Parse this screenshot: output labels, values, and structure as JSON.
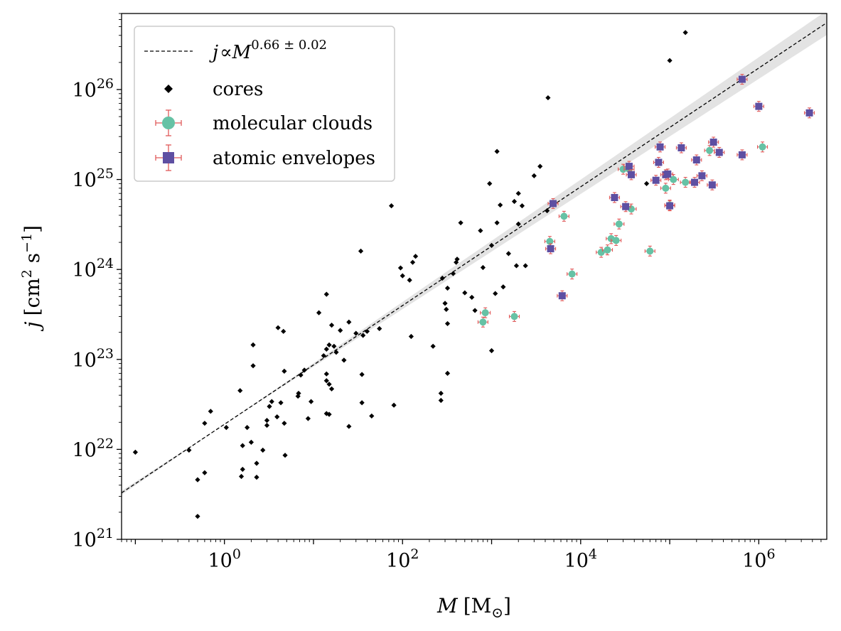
{
  "chart_data": {
    "type": "scatter",
    "xlabel": {
      "symbol": "M",
      "unit": "[M",
      "unit_sub": "⊙",
      "unit_close": "]"
    },
    "ylabel": {
      "symbol": "j",
      "unit": "[cm",
      "unit_sup1": "2",
      "unit_mid": " s",
      "unit_sup2": "−1",
      "unit_close": "]"
    },
    "x_scale": "log",
    "y_scale": "log",
    "xlim": [
      0.07,
      5800000
    ],
    "ylim": [
      1e+21,
      7e+26
    ],
    "x_ticks": [
      {
        "base": "10",
        "exp": "0",
        "value": 1
      },
      {
        "base": "10",
        "exp": "2",
        "value": 100
      },
      {
        "base": "10",
        "exp": "4",
        "value": 10000
      },
      {
        "base": "10",
        "exp": "6",
        "value": 1000000
      }
    ],
    "y_ticks": [
      {
        "base": "10",
        "exp": "21",
        "value": 1e+21
      },
      {
        "base": "10",
        "exp": "22",
        "value": 1e+22
      },
      {
        "base": "10",
        "exp": "23",
        "value": 1e+23
      },
      {
        "base": "10",
        "exp": "24",
        "value": 1e+24
      },
      {
        "base": "10",
        "exp": "25",
        "value": 1e+25
      },
      {
        "base": "10",
        "exp": "26",
        "value": 1e+26
      }
    ],
    "grid": false,
    "legend_position": "top-left",
    "fit": {
      "label_j": "j",
      "label_prop": "∝",
      "label_M": "M",
      "label_exp": "0.66 ± 0.02",
      "slope": 0.66,
      "slope_err": 0.02,
      "through": [
        1,
        1.9e+22
      ],
      "band_color": "#e3e3e3"
    },
    "series": [
      {
        "name": "cores",
        "marker": "diamond",
        "color": "#000000",
        "points": [
          [
            0.1,
            9.3e+21
          ],
          [
            0.4,
            9.8e+21
          ],
          [
            0.5,
            4.6e+21
          ],
          [
            0.6,
            5.5e+21
          ],
          [
            0.6,
            1.95e+22
          ],
          [
            0.7,
            2.65e+22
          ],
          [
            0.5,
            1.8e+21
          ],
          [
            1.05,
            1.75e+22
          ],
          [
            1.5,
            4.5e+22
          ],
          [
            1.55,
            5e+21
          ],
          [
            1.6,
            6e+21
          ],
          [
            1.6,
            1.1e+22
          ],
          [
            1.8,
            1.75e+22
          ],
          [
            2.0,
            1.2e+22
          ],
          [
            2.1,
            1.45e+23
          ],
          [
            2.1,
            8.5e+22
          ],
          [
            2.3,
            7e+21
          ],
          [
            2.3,
            4.9e+21
          ],
          [
            2.7,
            9.8e+21
          ],
          [
            3.0,
            1.85e+22
          ],
          [
            3.0,
            2.1e+22
          ],
          [
            3.2,
            3e+22
          ],
          [
            3.4,
            3.4e+22
          ],
          [
            3.9,
            2.3e+22
          ],
          [
            4.0,
            2.25e+23
          ],
          [
            4.3,
            3.3e+22
          ],
          [
            4.6,
            2.05e+23
          ],
          [
            4.7,
            7.4e+22
          ],
          [
            4.7,
            1.95e+22
          ],
          [
            4.8,
            8.6e+21
          ],
          [
            6.7,
            3.9e+22
          ],
          [
            6.8,
            4.2e+22
          ],
          [
            7.2,
            6.7e+22
          ],
          [
            7.9,
            7.6e+22
          ],
          [
            8.7,
            2.2e+22
          ],
          [
            9.4,
            3.4e+22
          ],
          [
            11.5,
            3.3e+23
          ],
          [
            13,
            1.1e+23
          ],
          [
            14,
            1.3e+23
          ],
          [
            14,
            5.3e+23
          ],
          [
            14,
            6.9e+22
          ],
          [
            14,
            5.8e+22
          ],
          [
            14,
            2.5e+22
          ],
          [
            15,
            2.45e+22
          ],
          [
            15,
            1.45e+23
          ],
          [
            15,
            5.3e+22
          ],
          [
            16,
            2.4e+23
          ],
          [
            16,
            4.7e+22
          ],
          [
            17,
            1.4e+23
          ],
          [
            18,
            1.2e+23
          ],
          [
            20,
            2.1e+23
          ],
          [
            22,
            9.8e+22
          ],
          [
            25,
            2.6e+23
          ],
          [
            25,
            1.8e+22
          ],
          [
            30,
            1.95e+23
          ],
          [
            34,
            1.6e+24
          ],
          [
            35,
            6.8e+22
          ],
          [
            35,
            3.3e+22
          ],
          [
            36,
            1.85e+23
          ],
          [
            40,
            2.05e+23
          ],
          [
            45,
            2.35e+22
          ],
          [
            55,
            2.2e+23
          ],
          [
            75,
            5.1e+24
          ],
          [
            80,
            3.1e+22
          ],
          [
            95,
            1.04e+24
          ],
          [
            100,
            8.5e+23
          ],
          [
            120,
            7.6e+23
          ],
          [
            125,
            1.8e+23
          ],
          [
            130,
            1.2e+24
          ],
          [
            140,
            1.4e+24
          ],
          [
            220,
            1.4e+23
          ],
          [
            270,
            4.2e+22
          ],
          [
            270,
            3.5e+22
          ],
          [
            280,
            8e+23
          ],
          [
            300,
            4.2e+23
          ],
          [
            310,
            3.6e+23
          ],
          [
            320,
            2.5e+23
          ],
          [
            320,
            7e+22
          ],
          [
            320,
            6.2e+23
          ],
          [
            370,
            9e+23
          ],
          [
            400,
            1.2e+24
          ],
          [
            410,
            1.3e+24
          ],
          [
            450,
            3.3e+24
          ],
          [
            500,
            5.5e+23
          ],
          [
            600,
            4.9e+23
          ],
          [
            650,
            3.5e+23
          ],
          [
            750,
            2.7e+24
          ],
          [
            800,
            1.05e+24
          ],
          [
            950,
            9e+24
          ],
          [
            1000,
            1.85e+24
          ],
          [
            1000,
            1.25e+23
          ],
          [
            1100,
            5.4e+23
          ],
          [
            1150,
            2.05e+25
          ],
          [
            1150,
            3.3e+24
          ],
          [
            1250,
            5.2e+24
          ],
          [
            1350,
            6.4e+23
          ],
          [
            1550,
            1.5e+24
          ],
          [
            1800,
            5.7e+24
          ],
          [
            1900,
            1.1e+24
          ],
          [
            2000,
            7e+24
          ],
          [
            2000,
            3.2e+24
          ],
          [
            2200,
            5.1e+24
          ],
          [
            2400,
            1.1e+24
          ],
          [
            3000,
            1.1e+25
          ],
          [
            3500,
            1.4e+25
          ],
          [
            4200,
            4.5e+24
          ],
          [
            4300,
            8.1e+25
          ],
          [
            55000,
            9e+24
          ],
          [
            100000,
            2.1e+26
          ],
          [
            150000,
            4.3e+26
          ]
        ]
      },
      {
        "name": "molecular clouds",
        "marker": "circle",
        "color": "#66c2a5",
        "error_color": "#e05a5a",
        "points": [
          [
            800,
            2.6e+23
          ],
          [
            850,
            3.3e+23
          ],
          [
            1800,
            3e+23
          ],
          [
            4500,
            2.05e+24
          ],
          [
            6500,
            3.9e+24
          ],
          [
            8000,
            8.9e+23
          ],
          [
            17000,
            1.55e+24
          ],
          [
            20000,
            1.65e+24
          ],
          [
            22000,
            2.2e+24
          ],
          [
            25000,
            2.1e+24
          ],
          [
            27000,
            3.2e+24
          ],
          [
            30000,
            1.3e+25
          ],
          [
            35000,
            1.3e+25
          ],
          [
            37000,
            4.7e+24
          ],
          [
            60000,
            1.6e+24
          ],
          [
            90000,
            8e+24
          ],
          [
            100000,
            5.2e+24
          ],
          [
            110000,
            1e+25
          ],
          [
            150000,
            9.3e+24
          ],
          [
            280000,
            2.1e+25
          ],
          [
            1100000,
            2.3e+25
          ]
        ]
      },
      {
        "name": "atomic envelopes",
        "marker": "square",
        "color": "#5e4fa2",
        "error_color": "#e05a5a",
        "points": [
          [
            4600,
            1.7e+24
          ],
          [
            4900,
            5.4e+24
          ],
          [
            6200,
            5.1e+23
          ],
          [
            24000,
            6.3e+24
          ],
          [
            32000,
            5e+24
          ],
          [
            35000,
            1.4e+25
          ],
          [
            37000,
            1.13e+25
          ],
          [
            70000,
            9.8e+24
          ],
          [
            75000,
            1.55e+25
          ],
          [
            78000,
            2.3e+25
          ],
          [
            90000,
            1.13e+25
          ],
          [
            95000,
            1.15e+25
          ],
          [
            100000,
            5.1e+24
          ],
          [
            135000,
            2.25e+25
          ],
          [
            190000,
            9.3e+24
          ],
          [
            200000,
            1.65e+25
          ],
          [
            230000,
            1.1e+25
          ],
          [
            300000,
            8.7e+24
          ],
          [
            310000,
            2.6e+25
          ],
          [
            360000,
            2e+25
          ],
          [
            650000,
            1.3e+26
          ],
          [
            650000,
            1.88e+25
          ],
          [
            1000000,
            6.5e+25
          ],
          [
            3700000,
            5.5e+25
          ]
        ]
      }
    ]
  }
}
